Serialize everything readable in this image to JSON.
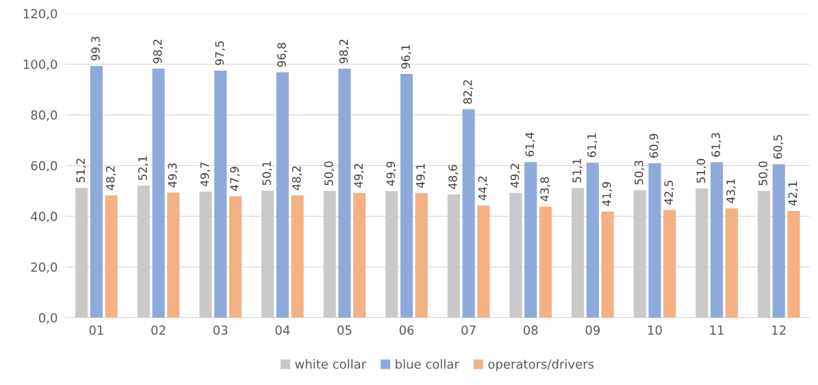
{
  "chart_data": {
    "type": "bar",
    "categories": [
      "01",
      "02",
      "03",
      "04",
      "05",
      "06",
      "07",
      "08",
      "09",
      "10",
      "11",
      "12"
    ],
    "series": [
      {
        "name": "white collar",
        "color": "#c9c9c9",
        "values": [
          51.2,
          52.1,
          49.7,
          50.1,
          50.0,
          49.9,
          48.6,
          49.2,
          51.1,
          50.3,
          51.0,
          50.0
        ],
        "value_labels": [
          "51,2",
          "52,1",
          "49,7",
          "50,1",
          "50,0",
          "49,9",
          "48,6",
          "49,2",
          "51,1",
          "50,3",
          "51,0",
          "50,0"
        ]
      },
      {
        "name": "blue collar",
        "color": "#8eaadb",
        "values": [
          99.3,
          98.2,
          97.5,
          96.8,
          98.2,
          96.1,
          82.2,
          61.4,
          61.1,
          60.9,
          61.3,
          60.5
        ],
        "value_labels": [
          "99,3",
          "98,2",
          "97,5",
          "96,8",
          "98,2",
          "96,1",
          "82,2",
          "61,4",
          "61,1",
          "60,9",
          "61,3",
          "60,5"
        ]
      },
      {
        "name": "operators/drivers",
        "color": "#f4b183",
        "values": [
          48.2,
          49.3,
          47.9,
          48.2,
          49.2,
          49.1,
          44.2,
          43.8,
          41.9,
          42.5,
          43.1,
          42.1
        ],
        "value_labels": [
          "48,2",
          "49,3",
          "47,9",
          "48,2",
          "49,2",
          "49,1",
          "44,2",
          "43,8",
          "41,9",
          "42,5",
          "43,1",
          "42,1"
        ]
      }
    ],
    "ylim": [
      0,
      120
    ],
    "yticks": [
      {
        "value": 0,
        "label": "0,0"
      },
      {
        "value": 20,
        "label": "20,0"
      },
      {
        "value": 40,
        "label": "40,0"
      },
      {
        "value": 60,
        "label": "60,0"
      },
      {
        "value": 80,
        "label": "80,0"
      },
      {
        "value": 100,
        "label": "100,0"
      },
      {
        "value": 120,
        "label": "120,0"
      }
    ],
    "grid": "y",
    "legend": "bottom"
  }
}
